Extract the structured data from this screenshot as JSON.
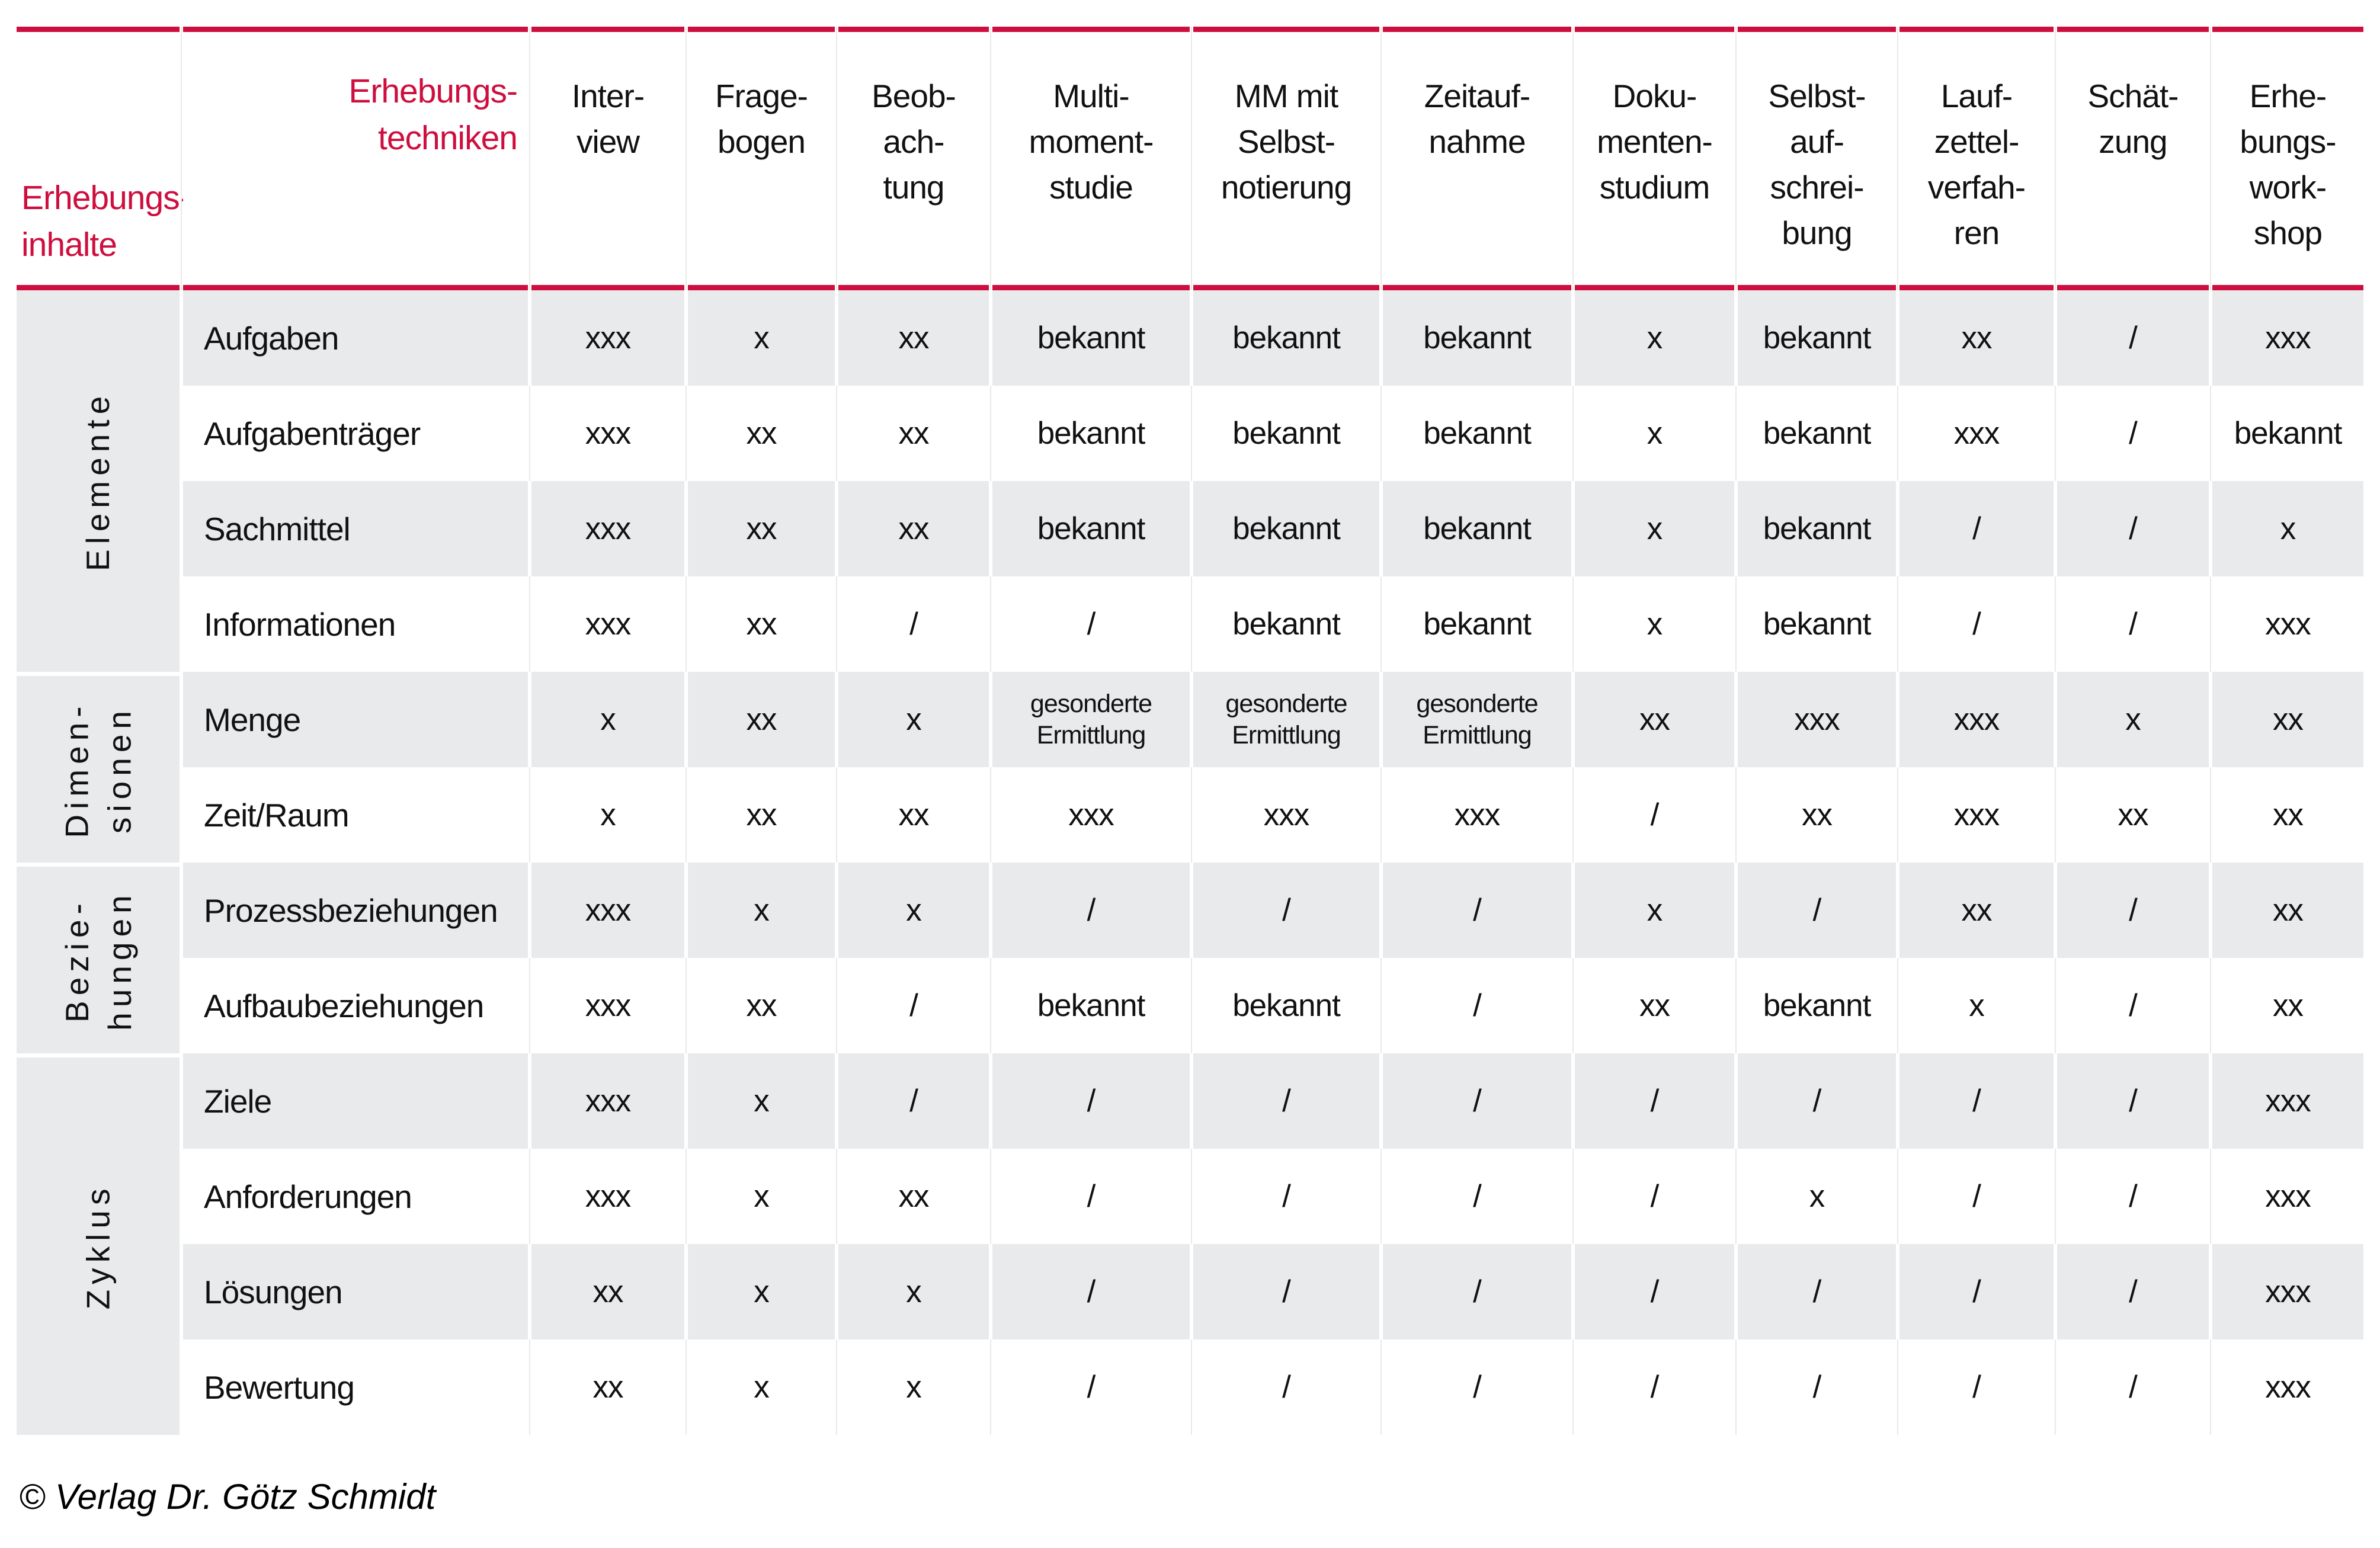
{
  "title": "Erhebungstechniken-Matrix",
  "colors": {
    "accent": "#ce0e3e",
    "row_stripe": "#e8eaeb"
  },
  "header": {
    "techniken_label_line1": "Erhebungs-",
    "techniken_label_line2": "techniken",
    "inhalte_label_line1": "Erhebungs-",
    "inhalte_label_line2": "inhalte",
    "columns": [
      [
        "Inter-",
        "view"
      ],
      [
        "Frage-",
        "bogen"
      ],
      [
        "Beob-",
        "ach-",
        "tung"
      ],
      [
        "Multi-",
        "moment-",
        "studie"
      ],
      [
        "MM mit",
        "Selbst-",
        "notierung"
      ],
      [
        "Zeitauf-",
        "nahme"
      ],
      [
        "Doku-",
        "menten-",
        "studium"
      ],
      [
        "Selbst-",
        "auf-",
        "schrei-",
        "bung"
      ],
      [
        "Lauf-",
        "zettel-",
        "verfah-",
        "ren"
      ],
      [
        "Schät-",
        "zung"
      ],
      [
        "Erhe-",
        "bungs-",
        "work-",
        "shop"
      ]
    ]
  },
  "groups": [
    {
      "label_lines": [
        "Elemente"
      ],
      "row_span": 4
    },
    {
      "label_lines": [
        "Dimen-",
        "sionen"
      ],
      "row_span": 2
    },
    {
      "label_lines": [
        "Bezie-",
        "hungen"
      ],
      "row_span": 2
    },
    {
      "label_lines": [
        "Zyklus"
      ],
      "row_span": 4
    }
  ],
  "rows": [
    {
      "label": "Aufgaben",
      "cells": [
        "xxx",
        "x",
        "xx",
        "bekannt",
        "bekannt",
        "bekannt",
        "x",
        "bekannt",
        "xx",
        "/",
        "xxx"
      ]
    },
    {
      "label": "Aufgabenträger",
      "cells": [
        "xxx",
        "xx",
        "xx",
        "bekannt",
        "bekannt",
        "bekannt",
        "x",
        "bekannt",
        "xxx",
        "/",
        "bekannt"
      ]
    },
    {
      "label": "Sachmittel",
      "cells": [
        "xxx",
        "xx",
        "xx",
        "bekannt",
        "bekannt",
        "bekannt",
        "x",
        "bekannt",
        "/",
        "/",
        "x"
      ]
    },
    {
      "label": "Informationen",
      "cells": [
        "xxx",
        "xx",
        "/",
        "/",
        "bekannt",
        "bekannt",
        "x",
        "bekannt",
        "/",
        "/",
        "xxx"
      ]
    },
    {
      "label": "Menge",
      "cells": [
        "x",
        "xx",
        "x",
        "gesonderte Ermittlung",
        "gesonderte Ermittlung",
        "gesonderte Ermittlung",
        "xx",
        "xxx",
        "xxx",
        "x",
        "xx"
      ]
    },
    {
      "label": "Zeit/Raum",
      "cells": [
        "x",
        "xx",
        "xx",
        "xxx",
        "xxx",
        "xxx",
        "/",
        "xx",
        "xxx",
        "xx",
        "xx"
      ]
    },
    {
      "label": "Prozessbeziehungen",
      "cells": [
        "xxx",
        "x",
        "x",
        "/",
        "/",
        "/",
        "x",
        "/",
        "xx",
        "/",
        "xx"
      ]
    },
    {
      "label": "Aufbaubeziehungen",
      "cells": [
        "xxx",
        "xx",
        "/",
        "bekannt",
        "bekannt",
        "/",
        "xx",
        "bekannt",
        "x",
        "/",
        "xx"
      ]
    },
    {
      "label": "Ziele",
      "cells": [
        "xxx",
        "x",
        "/",
        "/",
        "/",
        "/",
        "/",
        "/",
        "/",
        "/",
        "xxx"
      ]
    },
    {
      "label": "Anforderungen",
      "cells": [
        "xxx",
        "x",
        "xx",
        "/",
        "/",
        "/",
        "/",
        "x",
        "/",
        "/",
        "xxx"
      ]
    },
    {
      "label": "Lösungen",
      "cells": [
        "xx",
        "x",
        "x",
        "/",
        "/",
        "/",
        "/",
        "/",
        "/",
        "/",
        "xxx"
      ]
    },
    {
      "label": "Bewertung",
      "cells": [
        "xx",
        "x",
        "x",
        "/",
        "/",
        "/",
        "/",
        "/",
        "/",
        "/",
        "xxx"
      ]
    }
  ],
  "footer": {
    "copyright": "© Verlag Dr. Götz Schmidt"
  }
}
